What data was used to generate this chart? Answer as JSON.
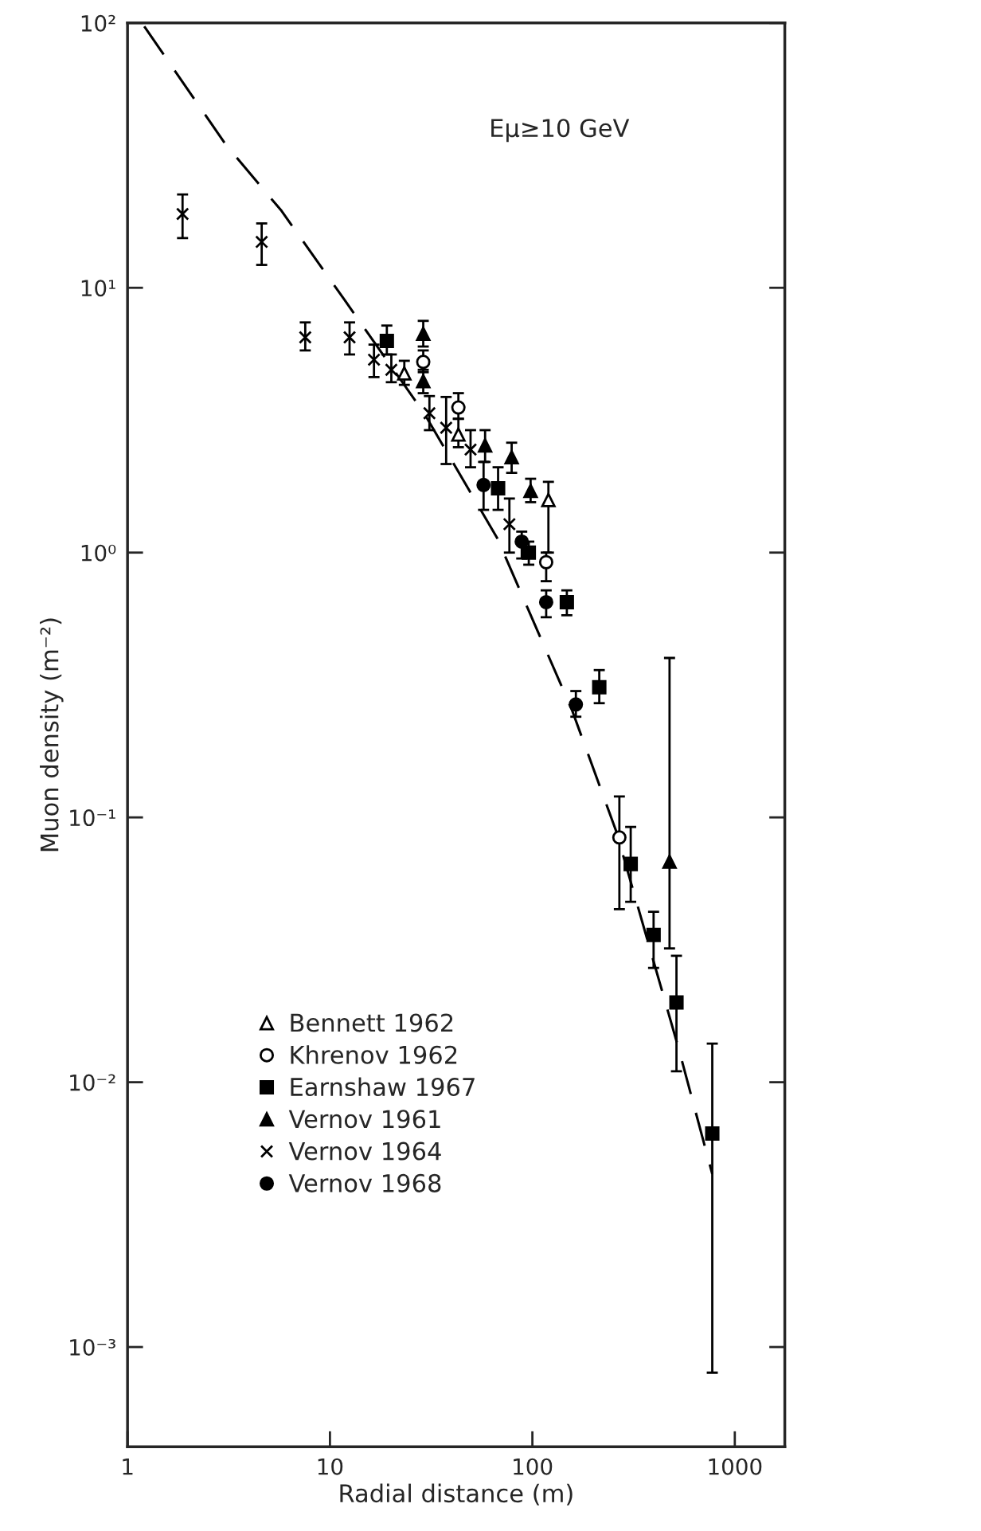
{
  "chart_data": {
    "type": "scatter",
    "xlabel": "Radial distance (m)",
    "ylabel": "Muon density (m⁻²)",
    "annotations": [
      "Eμ≥10 GeV"
    ],
    "log": "xy",
    "grid": false,
    "legend": "lower left",
    "xlim": [
      1,
      1766
    ],
    "xticks": [
      1,
      10,
      100,
      1000
    ],
    "ylim": [
      0.00042,
      100
    ],
    "yticks": [
      {
        "value": 100,
        "label": "10²"
      },
      {
        "value": 10,
        "label": "10¹"
      },
      {
        "value": 1,
        "label": "10⁰"
      },
      {
        "value": 0.1,
        "label": "10⁻¹"
      },
      {
        "value": 0.01,
        "label": "10⁻²"
      },
      {
        "value": 0.001,
        "label": "10⁻³"
      }
    ],
    "series": [
      {
        "name": "Bennett 1962",
        "color": "#ffffff",
        "marker": "triangle",
        "x": [
          23.3,
          43.1,
          120
        ],
        "values": [
          4.75,
          2.79,
          1.58
        ],
        "errors": [
          [
            4.3,
            5.3
          ],
          [
            2.5,
            3.2
          ],
          [
            1.0,
            1.85
          ]
        ]
      },
      {
        "name": "Khrenov 1962",
        "color": "#ffffff",
        "marker": "circle",
        "x": [
          28.9,
          43.1,
          117,
          269
        ],
        "values": [
          5.25,
          3.53,
          0.92,
          0.084
        ],
        "errors": [
          [
            4.8,
            5.8
          ],
          [
            3.2,
            4.0
          ],
          [
            0.78,
            1.0
          ],
          [
            0.045,
            0.12
          ]
        ]
      },
      {
        "name": "Earnshaw 1967",
        "color": "#000000",
        "marker": "square",
        "x": [
          19.1,
          67.7,
          96,
          148,
          214,
          306,
          397,
          515,
          774
        ],
        "values": [
          6.3,
          1.75,
          1.0,
          0.65,
          0.31,
          0.0667,
          0.036,
          0.02,
          0.0064
        ],
        "errors": [
          [
            5.6,
            7.2
          ],
          [
            1.45,
            2.1
          ],
          [
            0.9,
            1.1
          ],
          [
            0.58,
            0.72
          ],
          [
            0.27,
            0.36
          ],
          [
            0.048,
            0.092
          ],
          [
            0.027,
            0.044
          ],
          [
            0.011,
            0.03
          ],
          [
            0.0008,
            0.014
          ]
        ]
      },
      {
        "name": "Vernov 1961",
        "color": "#000000",
        "marker": "triangle",
        "x": [
          28.9,
          28.9,
          58.4,
          79,
          98,
          476
        ],
        "values": [
          6.7,
          4.44,
          2.54,
          2.29,
          1.71,
          0.068
        ],
        "errors": [
          [
            6.0,
            7.5
          ],
          [
            4.0,
            4.9
          ],
          [
            2.2,
            2.9
          ],
          [
            2.0,
            2.6
          ],
          [
            1.55,
            1.9
          ],
          [
            0.032,
            0.4
          ]
        ]
      },
      {
        "name": "Vernov 1964",
        "color": "#000000",
        "marker": "cross",
        "x": [
          1.87,
          4.6,
          7.55,
          12.5,
          16.5,
          20.1,
          31,
          37.5,
          49.5,
          77
        ],
        "values": [
          19,
          14.9,
          6.5,
          6.5,
          5.35,
          4.9,
          3.36,
          2.96,
          2.45,
          1.28
        ],
        "errors": [
          [
            15.4,
            22.5
          ],
          [
            12.2,
            17.5
          ],
          [
            5.8,
            7.4
          ],
          [
            5.6,
            7.4
          ],
          [
            4.6,
            6.1
          ],
          [
            4.4,
            5.6
          ],
          [
            2.9,
            3.9
          ],
          [
            2.16,
            3.87
          ],
          [
            2.1,
            2.9
          ],
          [
            1.0,
            1.6
          ]
        ]
      },
      {
        "name": "Vernov 1968",
        "color": "#000000",
        "marker": "circle",
        "x": [
          57.4,
          88.6,
          117,
          164
        ],
        "values": [
          1.8,
          1.1,
          0.65,
          0.267
        ],
        "errors": [
          [
            1.45,
            2.2
          ],
          [
            0.95,
            1.2
          ],
          [
            0.57,
            0.72
          ],
          [
            0.24,
            0.3
          ]
        ]
      },
      {
        "type": "line",
        "color": "#000000",
        "line_style": "dashed",
        "marker": "none",
        "x": [
          1.21,
          3.06,
          5.77,
          11.8,
          28.9,
          67,
          157,
          259,
          528,
          774
        ],
        "values": [
          97,
          34.7,
          19.5,
          9.0,
          3.4,
          1.135,
          0.254,
          0.089,
          0.0134,
          0.0045
        ]
      }
    ]
  }
}
